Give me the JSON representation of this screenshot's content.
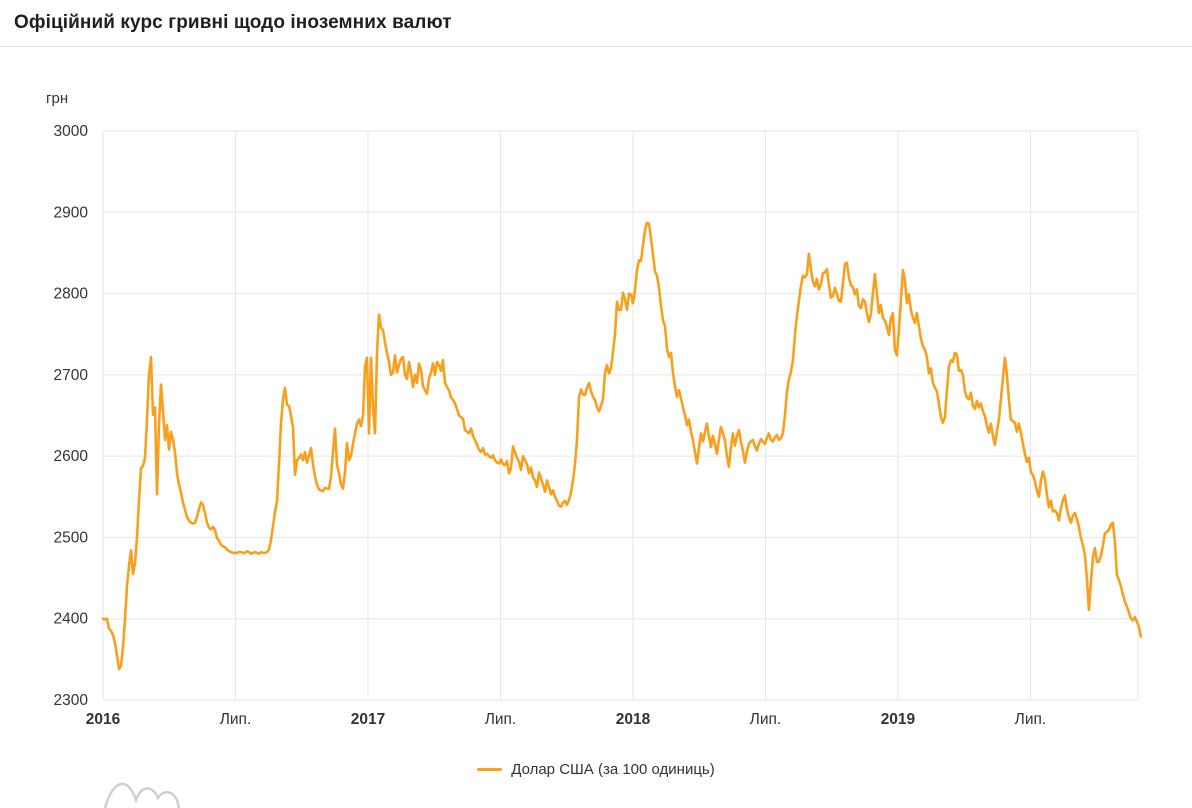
{
  "header": {
    "title": "Офіційний курс гривні щодо іноземних валют"
  },
  "legend": {
    "label": "Долар США (за 100 одиниць)",
    "marker_color": "#f8a01d"
  },
  "chart_data": {
    "type": "line",
    "title": "Офіційний курс гривні щодо іноземних валют",
    "y_unit_label": "грн",
    "ylabel": "грн",
    "xlabel": "",
    "ylim": [
      2300,
      3000
    ],
    "ytick_step": 100,
    "yticks": [
      2300,
      2400,
      2500,
      2600,
      2700,
      2800,
      2900,
      3000
    ],
    "xticks": [
      {
        "t": 0.0,
        "label": "2016",
        "bold": true
      },
      {
        "t": 0.5,
        "label": "Лип.",
        "bold": false
      },
      {
        "t": 1.0,
        "label": "2017",
        "bold": true
      },
      {
        "t": 1.5,
        "label": "Лип.",
        "bold": false
      },
      {
        "t": 2.0,
        "label": "2018",
        "bold": true
      },
      {
        "t": 2.5,
        "label": "Лип.",
        "bold": false
      },
      {
        "t": 3.0,
        "label": "2019",
        "bold": true
      },
      {
        "t": 3.5,
        "label": "Лип.",
        "bold": false
      }
    ],
    "x_span_years": 3.906,
    "grid": true,
    "grid_color": "#e6e6e6",
    "axis_label_color": "#333333",
    "legend_position": "bottom",
    "series": [
      {
        "name": "Долар США (за 100 одиниць)",
        "color": "#f8a01d",
        "t0": 0,
        "dt_years": 0.0075472,
        "values": [
          2400,
          2399,
          2400,
          2388,
          2385,
          2380,
          2370,
          2355,
          2338,
          2342,
          2365,
          2400,
          2440,
          2465,
          2484,
          2455,
          2468,
          2500,
          2545,
          2585,
          2588,
          2598,
          2645,
          2700,
          2722,
          2651,
          2660,
          2553,
          2640,
          2688,
          2655,
          2620,
          2638,
          2608,
          2630,
          2620,
          2605,
          2579,
          2565,
          2555,
          2543,
          2534,
          2525,
          2521,
          2518,
          2517,
          2518,
          2525,
          2535,
          2543,
          2540,
          2530,
          2518,
          2512,
          2510,
          2513,
          2509,
          2499,
          2496,
          2491,
          2489,
          2488,
          2485,
          2483,
          2482,
          2481,
          2481,
          2481,
          2482,
          2482,
          2481,
          2481,
          2483,
          2482,
          2480,
          2481,
          2482,
          2481,
          2480,
          2482,
          2481,
          2481,
          2482,
          2485,
          2497,
          2514,
          2531,
          2545,
          2590,
          2640,
          2670,
          2684,
          2663,
          2662,
          2650,
          2635,
          2577,
          2595,
          2598,
          2602,
          2595,
          2605,
          2592,
          2600,
          2610,
          2590,
          2575,
          2565,
          2559,
          2558,
          2557,
          2561,
          2560,
          2560,
          2575,
          2605,
          2634,
          2590,
          2579,
          2565,
          2560,
          2580,
          2616,
          2595,
          2600,
          2615,
          2628,
          2640,
          2645,
          2637,
          2650,
          2710,
          2721,
          2628,
          2721,
          2660,
          2628,
          2727,
          2774,
          2758,
          2755,
          2740,
          2727,
          2716,
          2700,
          2703,
          2724,
          2703,
          2712,
          2720,
          2722,
          2700,
          2695,
          2716,
          2703,
          2685,
          2700,
          2690,
          2714,
          2707,
          2686,
          2681,
          2677,
          2695,
          2703,
          2714,
          2700,
          2716,
          2712,
          2705,
          2718,
          2690,
          2685,
          2681,
          2672,
          2669,
          2665,
          2658,
          2650,
          2648,
          2646,
          2632,
          2630,
          2628,
          2634,
          2625,
          2620,
          2614,
          2608,
          2605,
          2610,
          2602,
          2603,
          2600,
          2598,
          2601,
          2595,
          2592,
          2591,
          2596,
          2590,
          2589,
          2594,
          2579,
          2585,
          2612,
          2605,
          2598,
          2593,
          2583,
          2600,
          2595,
          2590,
          2579,
          2586,
          2574,
          2570,
          2562,
          2580,
          2572,
          2565,
          2556,
          2570,
          2562,
          2553,
          2558,
          2550,
          2545,
          2539,
          2538,
          2543,
          2545,
          2540,
          2546,
          2555,
          2570,
          2590,
          2620,
          2672,
          2682,
          2676,
          2675,
          2684,
          2690,
          2680,
          2673,
          2669,
          2660,
          2655,
          2662,
          2670,
          2702,
          2712,
          2702,
          2708,
          2728,
          2750,
          2790,
          2780,
          2780,
          2801,
          2793,
          2780,
          2800,
          2799,
          2788,
          2804,
          2829,
          2841,
          2840,
          2860,
          2878,
          2887,
          2886,
          2868,
          2848,
          2827,
          2822,
          2807,
          2785,
          2767,
          2760,
          2732,
          2722,
          2727,
          2702,
          2686,
          2673,
          2681,
          2671,
          2660,
          2650,
          2638,
          2645,
          2630,
          2620,
          2605,
          2591,
          2610,
          2628,
          2618,
          2630,
          2640,
          2625,
          2611,
          2625,
          2615,
          2603,
          2620,
          2636,
          2628,
          2620,
          2600,
          2587,
          2610,
          2628,
          2613,
          2625,
          2632,
          2618,
          2607,
          2592,
          2605,
          2615,
          2618,
          2620,
          2612,
          2607,
          2615,
          2621,
          2618,
          2615,
          2622,
          2628,
          2620,
          2618,
          2623,
          2626,
          2620,
          2622,
          2628,
          2650,
          2678,
          2695,
          2703,
          2718,
          2748,
          2772,
          2791,
          2809,
          2822,
          2820,
          2824,
          2849,
          2830,
          2815,
          2809,
          2818,
          2805,
          2812,
          2825,
          2826,
          2830,
          2811,
          2795,
          2797,
          2807,
          2800,
          2791,
          2790,
          2812,
          2836,
          2838,
          2820,
          2810,
          2808,
          2799,
          2805,
          2785,
          2782,
          2793,
          2790,
          2776,
          2765,
          2775,
          2800,
          2824,
          2800,
          2776,
          2786,
          2770,
          2767,
          2759,
          2749,
          2770,
          2776,
          2731,
          2724,
          2755,
          2791,
          2829,
          2817,
          2788,
          2799,
          2780,
          2770,
          2764,
          2776,
          2760,
          2745,
          2735,
          2731,
          2722,
          2702,
          2708,
          2690,
          2684,
          2680,
          2665,
          2648,
          2641,
          2648,
          2680,
          2710,
          2718,
          2716,
          2727,
          2725,
          2705,
          2706,
          2700,
          2680,
          2672,
          2670,
          2678,
          2662,
          2658,
          2668,
          2660,
          2665,
          2655,
          2649,
          2638,
          2629,
          2640,
          2625,
          2614,
          2630,
          2645,
          2670,
          2695,
          2721,
          2700,
          2670,
          2645,
          2643,
          2641,
          2630,
          2640,
          2629,
          2615,
          2603,
          2593,
          2598,
          2580,
          2577,
          2569,
          2558,
          2550,
          2570,
          2581,
          2572,
          2553,
          2537,
          2545,
          2532,
          2533,
          2530,
          2521,
          2535,
          2546,
          2552,
          2535,
          2525,
          2518,
          2527,
          2530,
          2523,
          2513,
          2499,
          2491,
          2478,
          2450,
          2411,
          2445,
          2475,
          2487,
          2470,
          2470,
          2477,
          2490,
          2505,
          2507,
          2509,
          2516,
          2518,
          2495,
          2454,
          2448,
          2440,
          2430,
          2421,
          2415,
          2408,
          2400,
          2398,
          2402,
          2396,
          2390,
          2378
        ]
      }
    ]
  }
}
